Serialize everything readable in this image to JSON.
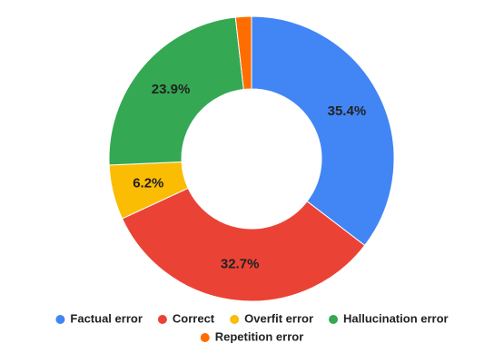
{
  "chart_data": {
    "type": "donut",
    "categories": [
      "Factual error",
      "Correct",
      "Overfit error",
      "Hallucination error",
      "Repetition error"
    ],
    "values": [
      35.4,
      32.7,
      6.2,
      23.9,
      1.8
    ],
    "value_labels": [
      "35.4%",
      "32.7%",
      "6.2%",
      "23.9%",
      null
    ],
    "colors": [
      "#4285f4",
      "#ea4335",
      "#fbbc04",
      "#34a853",
      "#ff6d01"
    ],
    "legend": "bottom"
  }
}
